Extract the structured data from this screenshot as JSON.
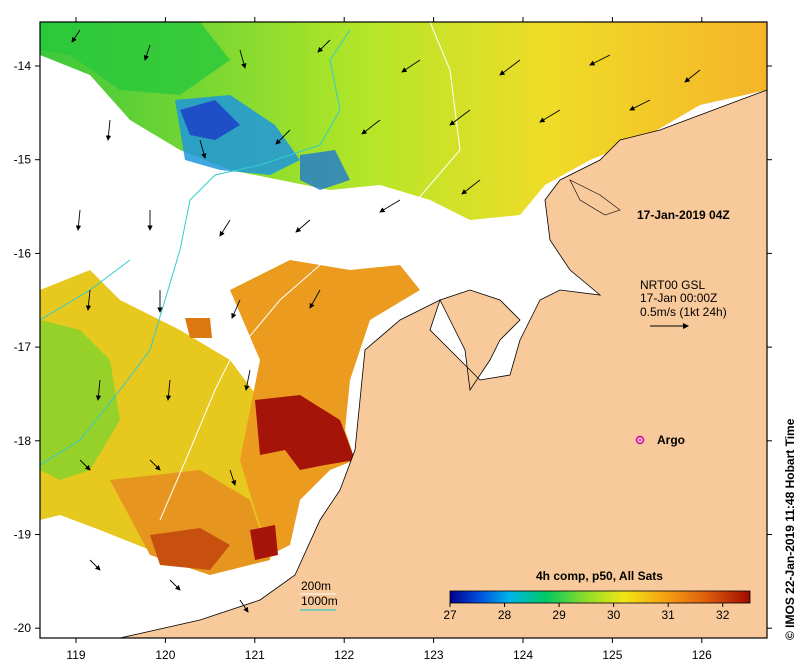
{
  "map": {
    "title_date": "17-Jan-2019 04Z",
    "current_info": {
      "line1": "NRT00 GSL",
      "line2": "17-Jan 00:00Z",
      "line3": "0.5m/s (1kt 24h)"
    },
    "argo_label": "Argo",
    "isobath_legend": {
      "shallow": "200m",
      "deep": "1000m",
      "shallow_color": "#ffffff",
      "deep_color": "#33cccc"
    },
    "colorbar": {
      "title": "4h comp, p50, All Sats",
      "ticks": [
        "27",
        "28",
        "29",
        "30",
        "31",
        "32"
      ],
      "min": 27,
      "max": 32.5,
      "colors": [
        "#00008b",
        "#0050e0",
        "#00b4e6",
        "#00c864",
        "#8cdc28",
        "#f0e614",
        "#f5a014",
        "#dc5a0a",
        "#a00a00"
      ]
    },
    "x_axis": {
      "ticks": [
        "119",
        "120",
        "121",
        "122",
        "123",
        "124",
        "125",
        "126"
      ]
    },
    "y_axis": {
      "ticks": [
        "-14",
        "-15",
        "-16",
        "-17",
        "-18",
        "-19",
        "-20"
      ]
    },
    "credit": "© IMOS 22-Jan-2019 11:48 Hobart Time",
    "colors": {
      "land": "#f8c99a",
      "frame": "#000000",
      "argo": "#cc00cc"
    }
  }
}
